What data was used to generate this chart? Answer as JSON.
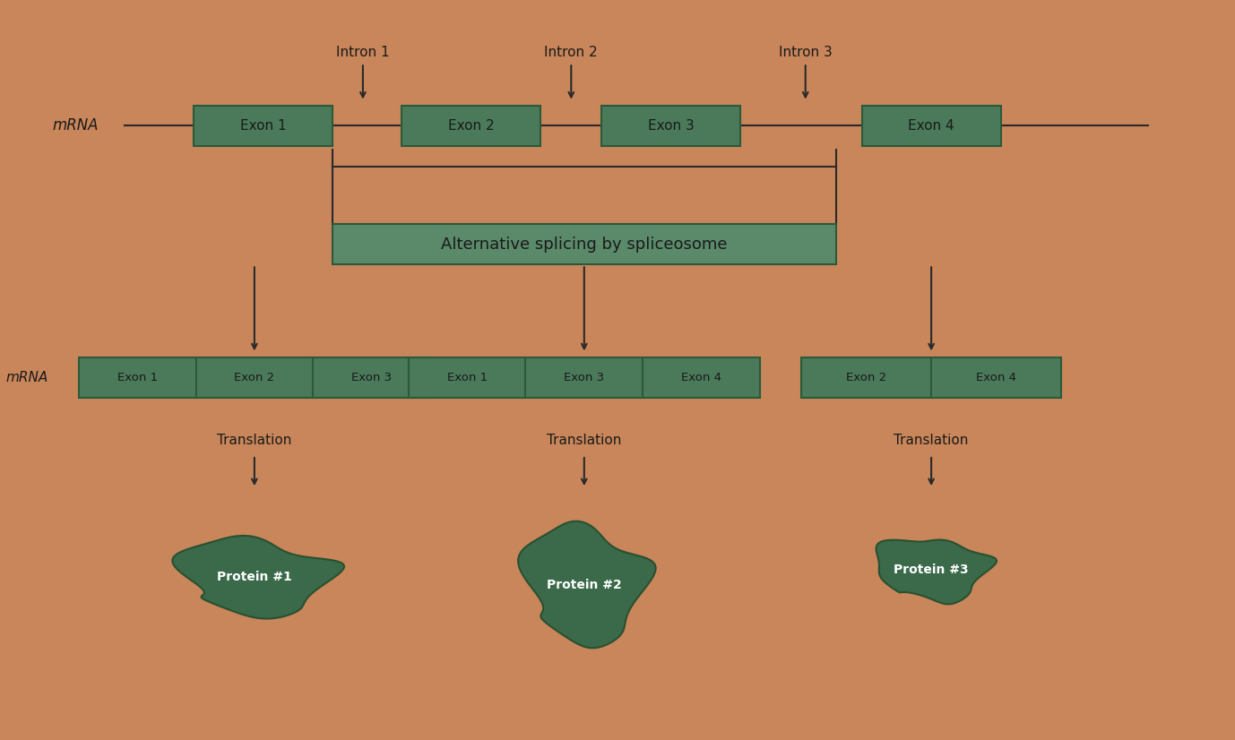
{
  "background_color": "#C8865A",
  "box_facecolor": "#4A7A5A",
  "box_edgecolor": "#2A5A3A",
  "box_facecolor_light": "#5A8A6A",
  "text_color": "#1A1A1A",
  "line_color": "#2A2A2A",
  "title_fontsize": 13,
  "label_fontsize": 12,
  "small_fontsize": 11,
  "mrna_label": "mRNA",
  "intron_labels": [
    "Intron 1",
    "Intron 2",
    "Intron 3"
  ],
  "exon_labels": [
    "Exon 1",
    "Exon 2",
    "Exon 3",
    "Exon 4"
  ],
  "splicing_label": "Alternative splicing by spliceosome",
  "translation_label": "Translation",
  "protein_labels": [
    "Protein #1",
    "Protein #2",
    "Protein #3"
  ],
  "mrna1_exons": [
    "Exon 1",
    "Exon 2",
    "Exon 3"
  ],
  "mrna2_exons": [
    "Exon 1",
    "Exon 3",
    "Exon 4"
  ],
  "mrna3_exons": [
    "Exon 2",
    "Exon 4"
  ]
}
